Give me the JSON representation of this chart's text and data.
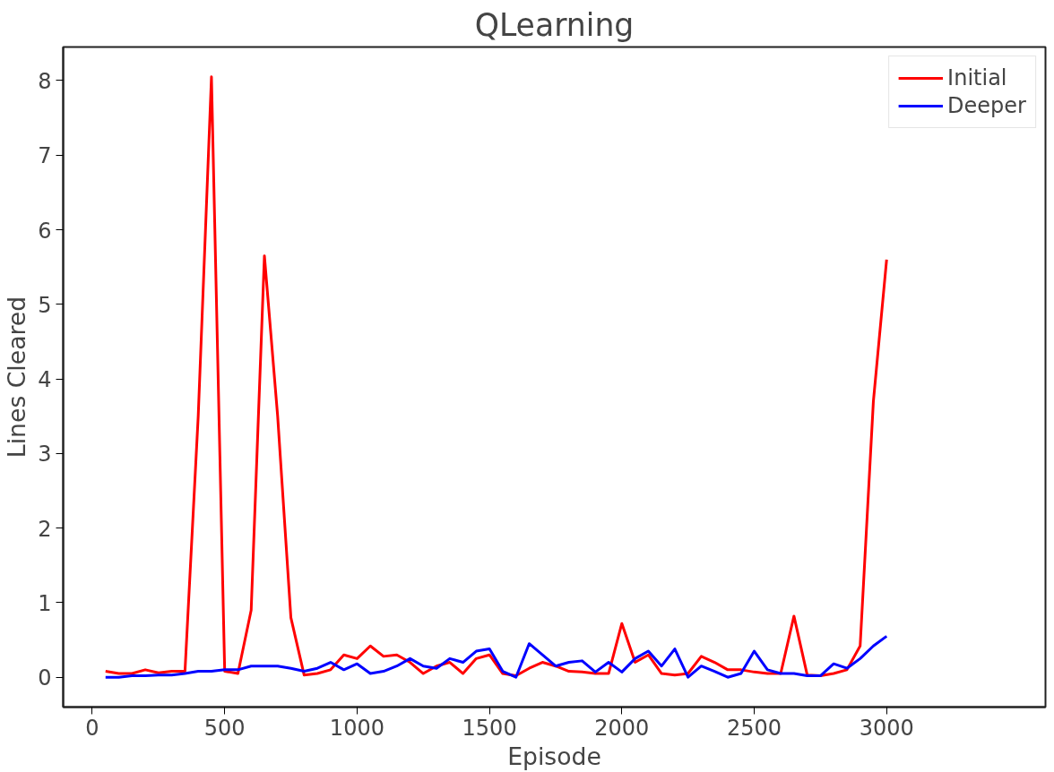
{
  "chart_data": {
    "type": "line",
    "title": "QLearning",
    "xlabel": "Episode",
    "ylabel": "Lines Cleared",
    "x": [
      50,
      100,
      150,
      200,
      250,
      300,
      350,
      400,
      450,
      500,
      550,
      600,
      650,
      700,
      750,
      800,
      850,
      900,
      950,
      1000,
      1050,
      1100,
      1150,
      1200,
      1250,
      1300,
      1350,
      1400,
      1450,
      1500,
      1550,
      1600,
      1650,
      1700,
      1750,
      1800,
      1850,
      1900,
      1950,
      2000,
      2050,
      2100,
      2150,
      2200,
      2250,
      2300,
      2350,
      2400,
      2450,
      2500,
      2550,
      2600,
      2650,
      2700,
      2750,
      2800,
      2850,
      2900,
      2950,
      3000
    ],
    "series": [
      {
        "name": "Initial",
        "color": "#ff0000",
        "values": [
          0.08,
          0.05,
          0.05,
          0.1,
          0.06,
          0.08,
          0.08,
          3.5,
          8.05,
          0.08,
          0.05,
          0.9,
          5.65,
          3.5,
          0.8,
          0.03,
          0.05,
          0.1,
          0.3,
          0.25,
          0.42,
          0.28,
          0.3,
          0.2,
          0.05,
          0.15,
          0.2,
          0.05,
          0.25,
          0.3,
          0.05,
          0.02,
          0.12,
          0.2,
          0.15,
          0.08,
          0.07,
          0.05,
          0.05,
          0.72,
          0.2,
          0.3,
          0.05,
          0.03,
          0.05,
          0.28,
          0.2,
          0.1,
          0.1,
          0.07,
          0.05,
          0.05,
          0.82,
          0.03,
          0.02,
          0.05,
          0.1,
          0.42,
          3.7,
          5.6
        ]
      },
      {
        "name": "Deeper",
        "color": "#0000ff",
        "values": [
          0.0,
          0.0,
          0.02,
          0.02,
          0.03,
          0.03,
          0.05,
          0.08,
          0.08,
          0.1,
          0.1,
          0.15,
          0.15,
          0.15,
          0.12,
          0.08,
          0.12,
          0.2,
          0.1,
          0.18,
          0.05,
          0.08,
          0.15,
          0.25,
          0.15,
          0.12,
          0.25,
          0.2,
          0.35,
          0.38,
          0.08,
          0.0,
          0.45,
          0.3,
          0.15,
          0.2,
          0.22,
          0.07,
          0.2,
          0.07,
          0.25,
          0.35,
          0.15,
          0.38,
          0.0,
          0.15,
          0.08,
          0.0,
          0.05,
          0.35,
          0.1,
          0.05,
          0.05,
          0.02,
          0.02,
          0.18,
          0.12,
          0.25,
          0.42,
          0.55
        ]
      }
    ],
    "xlim": [
      -110,
      3600
    ],
    "ylim": [
      -0.4,
      8.45
    ],
    "xticks": [
      0,
      500,
      1000,
      1500,
      2000,
      2500,
      3000
    ],
    "yticks": [
      0,
      1,
      2,
      3,
      4,
      5,
      6,
      7,
      8
    ],
    "legend": "top right",
    "line_style": "solid",
    "grid": false
  }
}
